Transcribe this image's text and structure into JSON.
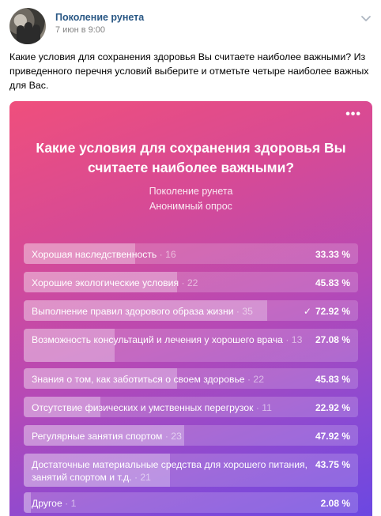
{
  "post": {
    "author": "Поколение рунета",
    "date": "7 июн в 9:00",
    "text": "Какие условия для сохранения здоровья Вы считаете наиболее важными? Из приведенного перечня условий выберите и отметьте четыре наиболее важных для Вас.",
    "menu_icon": "chevron-down-icon"
  },
  "poll": {
    "title": "Какие условия для сохранения здоровья Вы считаете наиболее важными?",
    "author": "Поколение рунета",
    "type": "Анонимный опрос",
    "menu_label": "•••",
    "colors": {
      "gradient_start": "#ef4f7c",
      "gradient_mid": "#b649b6",
      "gradient_end": "#6a47e2"
    },
    "options": [
      {
        "label": "Хорошая наследственность",
        "count": "· 16",
        "percent": "33.33 %",
        "share": 0.3333,
        "voted": false
      },
      {
        "label": "Хорошие экологические условия",
        "count": "· 22",
        "percent": "45.83 %",
        "share": 0.4583,
        "voted": false
      },
      {
        "label": "Выполнение правил здорового образа жизни",
        "count": "· 35",
        "percent": "72.92 %",
        "share": 0.7292,
        "voted": true,
        "check": "✓"
      },
      {
        "label": "Возможность консультаций и лечения у хорошего врача",
        "count": "· 13",
        "percent": "27.08 %",
        "share": 0.2708,
        "voted": false
      },
      {
        "label": "Знания о том, как заботиться о своем здоровье",
        "count": "· 22",
        "percent": "45.83 %",
        "share": 0.4583,
        "voted": false
      },
      {
        "label": "Отсутствие физических и умственных перегрузок",
        "count": "· 11",
        "percent": "22.92 %",
        "share": 0.2292,
        "voted": false
      },
      {
        "label": "Регулярные занятия спортом",
        "count": "· 23",
        "percent": "47.92 %",
        "share": 0.4792,
        "voted": false
      },
      {
        "label": "Достаточные материальные средства для хорошего питания, занятий спортом и т.д.",
        "count": "· 21",
        "percent": "43.75 %",
        "share": 0.4375,
        "voted": false
      },
      {
        "label": "Другое",
        "count": "· 1",
        "percent": "2.08 %",
        "share": 0.0208,
        "voted": false
      }
    ]
  }
}
